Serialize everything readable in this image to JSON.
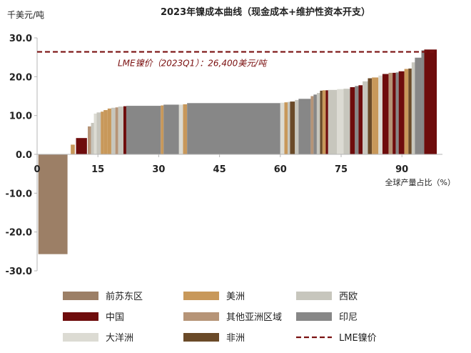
{
  "chart_data": {
    "type": "bar",
    "title": "2023年镍成本曲线（现金成本+维护性资本开支）",
    "y_unit": "千美元/吨",
    "xlabel": "全球产量占比（%）",
    "ylim": [
      -30,
      30
    ],
    "y_ticks": [
      "30.0",
      "20.0",
      "10.0",
      "0.0",
      "-10.0",
      "-20.0",
      "-30.0"
    ],
    "y_tick_values": [
      30,
      20,
      10,
      0,
      -10,
      -20,
      -30
    ],
    "xlim": [
      0,
      100
    ],
    "x_ticks": [
      "0",
      "15",
      "30",
      "45",
      "60",
      "75",
      "90"
    ],
    "x_tick_values": [
      0,
      15,
      30,
      45,
      60,
      75,
      90
    ],
    "colors": {
      "前苏东区": "#9c7f66",
      "美洲": "#c8985a",
      "西欧": "#c7c6bd",
      "中国": "#6e0c0c",
      "其他亚洲区域": "#b69477",
      "印尼": "#878787",
      "大洋洲": "#dcdbd3",
      "非洲": "#6a4a28",
      "LME镍价": "#7a1111"
    },
    "legend": [
      {
        "key": "前苏东区",
        "label": "前苏东区",
        "shape": "box"
      },
      {
        "key": "美洲",
        "label": "美洲",
        "shape": "box"
      },
      {
        "key": "西欧",
        "label": "西欧",
        "shape": "box"
      },
      {
        "key": "中国",
        "label": "中国",
        "shape": "box"
      },
      {
        "key": "其他亚洲区域",
        "label": "其他亚洲区域",
        "shape": "box"
      },
      {
        "key": "印尼",
        "label": "印尼",
        "shape": "box"
      },
      {
        "key": "大洋洲",
        "label": "大洋洲",
        "shape": "box"
      },
      {
        "key": "非洲",
        "label": "非洲",
        "shape": "box"
      },
      {
        "key": "LME镍价",
        "label": "LME镍价",
        "shape": "dash"
      }
    ],
    "reference_line": {
      "label": "LME镍价（2023Q1）：26,400美元/吨",
      "value": 26.4
    },
    "segments": [
      {
        "x0": 0.3,
        "x1": 7.5,
        "value": -25.7,
        "region": "前苏东区"
      },
      {
        "x0": 8.3,
        "x1": 9.3,
        "value": 2.5,
        "region": "美洲"
      },
      {
        "x0": 9.6,
        "x1": 12.3,
        "value": 4.2,
        "region": "中国"
      },
      {
        "x0": 12.5,
        "x1": 13.3,
        "value": 7.2,
        "region": "其他亚洲区域"
      },
      {
        "x0": 13.3,
        "x1": 14.0,
        "value": 8.1,
        "region": "西欧"
      },
      {
        "x0": 14.0,
        "x1": 14.7,
        "value": 10.5,
        "region": "大洋洲"
      },
      {
        "x0": 14.7,
        "x1": 15.7,
        "value": 10.8,
        "region": "西欧"
      },
      {
        "x0": 15.7,
        "x1": 16.4,
        "value": 11.0,
        "region": "美洲"
      },
      {
        "x0": 16.4,
        "x1": 17.4,
        "value": 11.4,
        "region": "美洲"
      },
      {
        "x0": 17.4,
        "x1": 18.3,
        "value": 11.8,
        "region": "美洲"
      },
      {
        "x0": 18.3,
        "x1": 19.3,
        "value": 12.0,
        "region": "西欧"
      },
      {
        "x0": 19.3,
        "x1": 20.0,
        "value": 12.1,
        "region": "其他亚洲区域"
      },
      {
        "x0": 20.0,
        "x1": 21.3,
        "value": 12.3,
        "region": "西欧"
      },
      {
        "x0": 21.3,
        "x1": 22.0,
        "value": 12.4,
        "region": "中国"
      },
      {
        "x0": 22.0,
        "x1": 30.5,
        "value": 12.5,
        "region": "印尼"
      },
      {
        "x0": 30.5,
        "x1": 31.2,
        "value": 12.6,
        "region": "美洲"
      },
      {
        "x0": 31.2,
        "x1": 35.0,
        "value": 12.8,
        "region": "印尼"
      },
      {
        "x0": 35.0,
        "x1": 36.0,
        "value": 12.8,
        "region": "大洋洲"
      },
      {
        "x0": 36.0,
        "x1": 37.0,
        "value": 12.9,
        "region": "美洲"
      },
      {
        "x0": 37.0,
        "x1": 60.0,
        "value": 13.2,
        "region": "印尼"
      },
      {
        "x0": 60.0,
        "x1": 61.0,
        "value": 13.3,
        "region": "大洋洲"
      },
      {
        "x0": 61.0,
        "x1": 61.8,
        "value": 13.4,
        "region": "美洲"
      },
      {
        "x0": 61.8,
        "x1": 62.4,
        "value": 13.5,
        "region": "西欧"
      },
      {
        "x0": 62.4,
        "x1": 63.6,
        "value": 13.6,
        "region": "非洲"
      },
      {
        "x0": 63.6,
        "x1": 64.5,
        "value": 14.0,
        "region": "西欧"
      },
      {
        "x0": 64.5,
        "x1": 67.5,
        "value": 14.3,
        "region": "印尼"
      },
      {
        "x0": 67.5,
        "x1": 68.2,
        "value": 15.0,
        "region": "其他亚洲区域"
      },
      {
        "x0": 68.2,
        "x1": 69.0,
        "value": 15.4,
        "region": "印尼"
      },
      {
        "x0": 69.0,
        "x1": 69.8,
        "value": 15.8,
        "region": "西欧"
      },
      {
        "x0": 69.8,
        "x1": 70.4,
        "value": 16.4,
        "region": "非洲"
      },
      {
        "x0": 70.4,
        "x1": 71.2,
        "value": 16.5,
        "region": "美洲"
      },
      {
        "x0": 71.2,
        "x1": 71.8,
        "value": 16.5,
        "region": "中国"
      },
      {
        "x0": 71.8,
        "x1": 74.0,
        "value": 16.6,
        "region": "西欧"
      },
      {
        "x0": 74.0,
        "x1": 75.6,
        "value": 16.8,
        "region": "大洋洲"
      },
      {
        "x0": 75.6,
        "x1": 77.2,
        "value": 16.9,
        "region": "西欧"
      },
      {
        "x0": 77.2,
        "x1": 78.4,
        "value": 17.3,
        "region": "中国"
      },
      {
        "x0": 78.4,
        "x1": 79.3,
        "value": 17.6,
        "region": "印尼"
      },
      {
        "x0": 79.3,
        "x1": 80.3,
        "value": 17.8,
        "region": "中国"
      },
      {
        "x0": 80.3,
        "x1": 81.6,
        "value": 18.8,
        "region": "西欧"
      },
      {
        "x0": 81.6,
        "x1": 82.6,
        "value": 19.6,
        "region": "非洲"
      },
      {
        "x0": 82.6,
        "x1": 84.2,
        "value": 19.8,
        "region": "美洲"
      },
      {
        "x0": 84.2,
        "x1": 85.2,
        "value": 20.3,
        "region": "大洋洲"
      },
      {
        "x0": 85.2,
        "x1": 86.7,
        "value": 20.7,
        "region": "中国"
      },
      {
        "x0": 86.7,
        "x1": 87.7,
        "value": 21.0,
        "region": "其他亚洲区域"
      },
      {
        "x0": 87.7,
        "x1": 88.5,
        "value": 21.0,
        "region": "中国"
      },
      {
        "x0": 88.5,
        "x1": 89.2,
        "value": 21.1,
        "region": "印尼"
      },
      {
        "x0": 89.2,
        "x1": 90.6,
        "value": 21.4,
        "region": "中国"
      },
      {
        "x0": 90.6,
        "x1": 91.6,
        "value": 22.0,
        "region": "美洲"
      },
      {
        "x0": 91.6,
        "x1": 92.4,
        "value": 22.1,
        "region": "非洲"
      },
      {
        "x0": 92.4,
        "x1": 93.2,
        "value": 23.7,
        "region": "西欧"
      },
      {
        "x0": 93.2,
        "x1": 94.8,
        "value": 24.9,
        "region": "印尼"
      },
      {
        "x0": 94.8,
        "x1": 95.5,
        "value": 26.8,
        "region": "印尼"
      },
      {
        "x0": 95.5,
        "x1": 98.6,
        "value": 27.0,
        "region": "中国"
      }
    ]
  }
}
